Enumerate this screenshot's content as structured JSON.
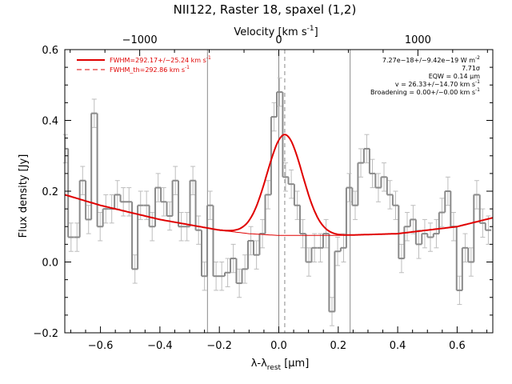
{
  "chart_data": {
    "type": "line",
    "title": "NII122, Raster 18, spaxel (1,2)",
    "top_axis_label": "Velocity [km s",
    "top_axis_label_sup": "-1",
    "top_axis_label_end": "]",
    "xlabel": "λ-λ",
    "xlabel_sub": "rest",
    "xlabel_units": " [μm]",
    "ylabel": "Flux density [Jy]",
    "xlim": [
      -0.72,
      0.72
    ],
    "ylim": [
      -0.2,
      0.6
    ],
    "x_ticks": [
      -0.6,
      -0.4,
      -0.2,
      0.0,
      0.2,
      0.4,
      0.6
    ],
    "x_tick_labels": [
      "−0.6",
      "−0.4",
      "−0.2",
      "0.0",
      "0.2",
      "0.4",
      "0.6"
    ],
    "y_ticks": [
      -0.2,
      0.0,
      0.2,
      0.4,
      0.6
    ],
    "y_tick_labels": [
      "−0.2",
      "0.0",
      "0.2",
      "0.4",
      "0.6"
    ],
    "top_ticks_wavelength": [
      -0.468,
      0.0,
      0.468
    ],
    "top_tick_labels": [
      "−1000",
      "0",
      "1000"
    ],
    "vertical_lines_wavelength": [
      -0.24,
      0.0,
      0.24
    ],
    "line_center_wavelength": 0.02,
    "legend": {
      "position": "top-left",
      "entries": [
        {
          "label": "FWHM=292.17+/−25.24 km s",
          "sup": "-1",
          "style": "solid",
          "color": "#e00000"
        },
        {
          "label": "FWHM_th=292.86 km s",
          "sup": "-1",
          "style": "dashed",
          "color": "#e00000"
        }
      ]
    },
    "fit_info": [
      {
        "text": "7.27e−18+/−9.42e−19 W m",
        "sup": "-2"
      },
      {
        "text": "7.71σ",
        "sup": ""
      },
      {
        "text": "EQW = 0.14 μm",
        "sup": ""
      },
      {
        "text": "v = 26.33+/−14.70 km s",
        "sup": "-1"
      },
      {
        "text": "Broadening = 0.00+/−0.00 km s",
        "sup": "-1"
      }
    ],
    "spectrum": {
      "name": "data",
      "color": "#8a8a8a",
      "bin_width": 0.0195,
      "x": [
        -0.718,
        -0.699,
        -0.679,
        -0.66,
        -0.64,
        -0.621,
        -0.601,
        -0.582,
        -0.562,
        -0.543,
        -0.523,
        -0.504,
        -0.484,
        -0.465,
        -0.445,
        -0.426,
        -0.406,
        -0.387,
        -0.367,
        -0.348,
        -0.328,
        -0.309,
        -0.289,
        -0.27,
        -0.25,
        -0.231,
        -0.211,
        -0.192,
        -0.172,
        -0.153,
        -0.133,
        -0.114,
        -0.094,
        -0.075,
        -0.055,
        -0.036,
        -0.016,
        0.003,
        0.023,
        0.042,
        0.062,
        0.081,
        0.101,
        0.12,
        0.14,
        0.159,
        0.179,
        0.198,
        0.218,
        0.237,
        0.257,
        0.276,
        0.296,
        0.315,
        0.335,
        0.354,
        0.374,
        0.393,
        0.413,
        0.432,
        0.452,
        0.471,
        0.491,
        0.51,
        0.53,
        0.549,
        0.569,
        0.588,
        0.608,
        0.627,
        0.647,
        0.666,
        0.686,
        0.705
      ],
      "y": [
        0.32,
        0.07,
        0.07,
        0.23,
        0.12,
        0.42,
        0.1,
        0.15,
        0.15,
        0.19,
        0.17,
        0.17,
        -0.02,
        0.16,
        0.16,
        0.1,
        0.21,
        0.17,
        0.13,
        0.23,
        0.1,
        0.1,
        0.23,
        0.09,
        -0.04,
        0.16,
        -0.04,
        -0.04,
        -0.03,
        0.01,
        -0.06,
        -0.02,
        0.06,
        0.02,
        0.08,
        0.19,
        0.41,
        0.48,
        0.24,
        0.22,
        0.16,
        0.08,
        0.0,
        0.04,
        0.04,
        0.08,
        -0.14,
        0.03,
        0.04,
        0.21,
        0.16,
        0.28,
        0.32,
        0.25,
        0.21,
        0.24,
        0.19,
        0.16,
        0.01,
        0.1,
        0.12,
        0.05,
        0.08,
        0.07,
        0.08,
        0.14,
        0.2,
        0.1,
        -0.08,
        0.04,
        0.0,
        0.19,
        0.11,
        0.09
      ],
      "err": 0.04
    },
    "fit": {
      "name": "fit",
      "color": "#e00000",
      "model": "gaussian plus polynomial continuum",
      "peak_flux": 0.36,
      "center": 0.02,
      "fwhm": 0.14
    },
    "continuum": {
      "name": "continuum",
      "color": "#e00000",
      "x": [
        -0.72,
        -0.6,
        -0.4,
        -0.2,
        -0.1,
        0.0,
        0.1,
        0.2,
        0.4,
        0.6,
        0.72
      ],
      "y": [
        0.19,
        0.16,
        0.12,
        0.09,
        0.08,
        0.075,
        0.075,
        0.075,
        0.08,
        0.1,
        0.125
      ]
    },
    "grid": false
  }
}
